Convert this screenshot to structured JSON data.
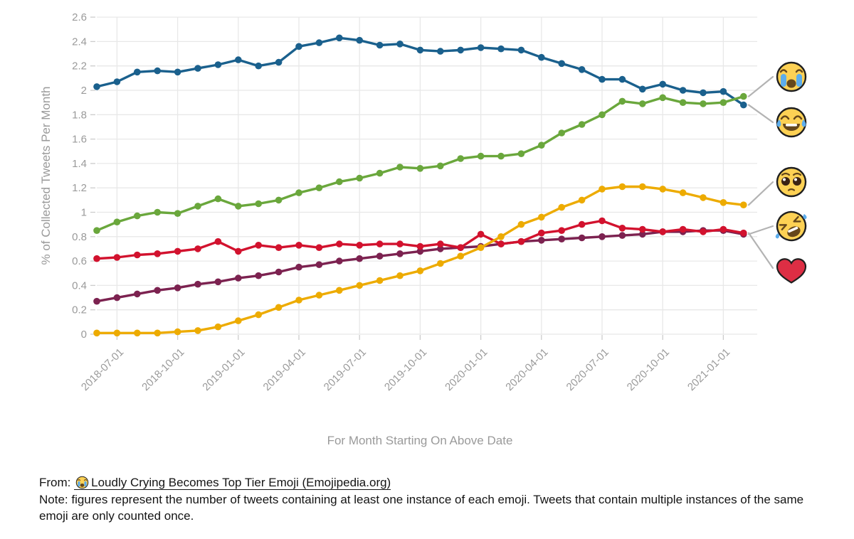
{
  "chart_data": {
    "type": "line",
    "title": "",
    "xlabel": "For Month Starting On Above Date",
    "ylabel": "% of Collected Tweets Per Month",
    "ylim": [
      0,
      2.6
    ],
    "ytick_step": 0.2,
    "grid": true,
    "x": [
      "2018-06-01",
      "2018-07-01",
      "2018-08-01",
      "2018-09-01",
      "2018-10-01",
      "2018-11-01",
      "2018-12-01",
      "2019-01-01",
      "2019-02-01",
      "2019-03-01",
      "2019-04-01",
      "2019-05-01",
      "2019-06-01",
      "2019-07-01",
      "2019-08-01",
      "2019-09-01",
      "2019-10-01",
      "2019-11-01",
      "2019-12-01",
      "2020-01-01",
      "2020-02-01",
      "2020-03-01",
      "2020-04-01",
      "2020-05-01",
      "2020-06-01",
      "2020-07-01",
      "2020-08-01",
      "2020-09-01",
      "2020-10-01",
      "2020-11-01",
      "2020-12-01",
      "2021-01-01",
      "2021-02-01"
    ],
    "xtick_labels": [
      "2018-07-01",
      "2018-10-01",
      "2019-01-01",
      "2019-04-01",
      "2019-07-01",
      "2019-10-01",
      "2020-01-01",
      "2020-04-01",
      "2020-07-01",
      "2020-10-01",
      "2021-01-01"
    ],
    "series": [
      {
        "name": "face-with-tears-of-joy",
        "emoji": "😂",
        "color": "#1a608d",
        "values": [
          2.03,
          2.07,
          2.15,
          2.16,
          2.15,
          2.18,
          2.21,
          2.25,
          2.2,
          2.23,
          2.36,
          2.39,
          2.43,
          2.41,
          2.37,
          2.38,
          2.33,
          2.32,
          2.33,
          2.35,
          2.34,
          2.33,
          2.27,
          2.22,
          2.17,
          2.09,
          2.09,
          2.01,
          2.05,
          2.0,
          1.98,
          1.99,
          1.88
        ]
      },
      {
        "name": "loudly-crying-face",
        "emoji": "😭",
        "color": "#6aa73c",
        "values": [
          0.85,
          0.92,
          0.97,
          1.0,
          0.99,
          1.05,
          1.11,
          1.05,
          1.07,
          1.1,
          1.16,
          1.2,
          1.25,
          1.28,
          1.32,
          1.37,
          1.36,
          1.38,
          1.44,
          1.46,
          1.46,
          1.48,
          1.55,
          1.65,
          1.72,
          1.8,
          1.91,
          1.89,
          1.94,
          1.9,
          1.89,
          1.9,
          1.95
        ]
      },
      {
        "name": "rolling-on-the-floor-laughing",
        "emoji": "🤣",
        "color": "#7c2250",
        "values": [
          0.27,
          0.3,
          0.33,
          0.36,
          0.38,
          0.41,
          0.43,
          0.46,
          0.48,
          0.51,
          0.55,
          0.57,
          0.6,
          0.62,
          0.64,
          0.66,
          0.68,
          0.7,
          0.71,
          0.72,
          0.74,
          0.76,
          0.77,
          0.78,
          0.79,
          0.8,
          0.81,
          0.82,
          0.84,
          0.84,
          0.85,
          0.85,
          0.82
        ]
      },
      {
        "name": "red-heart",
        "emoji": "❤️",
        "color": "#d2122e",
        "values": [
          0.62,
          0.63,
          0.65,
          0.66,
          0.68,
          0.7,
          0.76,
          0.68,
          0.73,
          0.71,
          0.73,
          0.71,
          0.74,
          0.73,
          0.74,
          0.74,
          0.72,
          0.74,
          0.71,
          0.82,
          0.74,
          0.76,
          0.83,
          0.85,
          0.9,
          0.93,
          0.87,
          0.86,
          0.84,
          0.86,
          0.84,
          0.86,
          0.83
        ]
      },
      {
        "name": "pleading-face",
        "emoji": "🥺",
        "color": "#edab00",
        "values": [
          0.01,
          0.01,
          0.01,
          0.01,
          0.02,
          0.03,
          0.06,
          0.11,
          0.16,
          0.22,
          0.28,
          0.32,
          0.36,
          0.4,
          0.44,
          0.48,
          0.52,
          0.58,
          0.64,
          0.71,
          0.8,
          0.9,
          0.96,
          1.04,
          1.1,
          1.19,
          1.21,
          1.21,
          1.19,
          1.16,
          1.12,
          1.08,
          1.06
        ]
      }
    ],
    "legend_position": "right",
    "legend_order": [
      "loudly-crying-face",
      "face-with-tears-of-joy",
      "pleading-face",
      "rolling-on-the-floor-laughing",
      "red-heart"
    ]
  },
  "style_colors": {
    "gridline": "#e8e8e8",
    "tick_label": "#9a9a9a",
    "axis_title": "#9a9a9a",
    "leader_line": "#b3b3b3"
  },
  "footer": {
    "source_prefix": "From:",
    "source_emoji": "😭",
    "source_link": "Loudly Crying Becomes Top Tier Emoji (Emojipedia.org)",
    "note": "Note: figures represent the number of tweets containing at least one instance of each emoji. Tweets that contain multiple instances of the same emoji are only counted once."
  }
}
